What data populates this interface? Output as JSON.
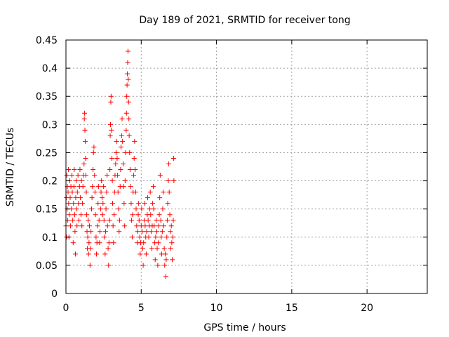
{
  "chart_data": {
    "type": "scatter",
    "title": "Day 189 of 2021, SRMTID for receiver tong",
    "xlabel": "GPS time / hours",
    "ylabel": "SRMTID / TECUs",
    "xlim": [
      0,
      24
    ],
    "ylim": [
      0,
      0.45
    ],
    "xticks": [
      0,
      5,
      10,
      15,
      20
    ],
    "xtick_labels": [
      "0",
      "5",
      "10",
      "15",
      "20"
    ],
    "yticks": [
      0,
      0.05,
      0.1,
      0.15,
      0.2,
      0.25,
      0.3,
      0.35,
      0.4,
      0.45
    ],
    "ytick_labels": [
      "0",
      "0.05",
      "0.1",
      "0.15",
      "0.2",
      "0.25",
      "0.3",
      "0.35",
      "0.4",
      "0.45"
    ],
    "grid": true,
    "marker": "+",
    "color": "#ff0000",
    "series": [
      {
        "name": "SRMTID",
        "points": [
          [
            0.0,
            0.12
          ],
          [
            0.02,
            0.17
          ],
          [
            0.04,
            0.1
          ],
          [
            0.06,
            0.21
          ],
          [
            0.08,
            0.15
          ],
          [
            0.1,
            0.19
          ],
          [
            0.12,
            0.13
          ],
          [
            0.14,
            0.18
          ],
          [
            0.16,
            0.22
          ],
          [
            0.18,
            0.16
          ],
          [
            0.2,
            0.1
          ],
          [
            0.22,
            0.14
          ],
          [
            0.25,
            0.2
          ],
          [
            0.28,
            0.17
          ],
          [
            0.3,
            0.12
          ],
          [
            0.33,
            0.19
          ],
          [
            0.36,
            0.15
          ],
          [
            0.4,
            0.21
          ],
          [
            0.42,
            0.18
          ],
          [
            0.45,
            0.13
          ],
          [
            0.48,
            0.09
          ],
          [
            0.5,
            0.16
          ],
          [
            0.53,
            0.19
          ],
          [
            0.55,
            0.22
          ],
          [
            0.58,
            0.14
          ],
          [
            0.6,
            0.11
          ],
          [
            0.63,
            0.07
          ],
          [
            0.65,
            0.17
          ],
          [
            0.68,
            0.2
          ],
          [
            0.7,
            0.15
          ],
          [
            0.73,
            0.12
          ],
          [
            0.76,
            0.18
          ],
          [
            0.8,
            0.21
          ],
          [
            0.83,
            0.16
          ],
          [
            0.86,
            0.13
          ],
          [
            0.9,
            0.19
          ],
          [
            0.93,
            0.22
          ],
          [
            0.96,
            0.17
          ],
          [
            1.0,
            0.14
          ],
          [
            1.03,
            0.2
          ],
          [
            1.06,
            0.12
          ],
          [
            1.1,
            0.16
          ],
          [
            1.13,
            0.19
          ],
          [
            1.16,
            0.21
          ],
          [
            1.2,
            0.23
          ],
          [
            1.22,
            0.31
          ],
          [
            1.24,
            0.32
          ],
          [
            1.26,
            0.29
          ],
          [
            1.28,
            0.27
          ],
          [
            1.3,
            0.24
          ],
          [
            1.32,
            0.21
          ],
          [
            1.35,
            0.18
          ],
          [
            1.38,
            0.14
          ],
          [
            1.4,
            0.11
          ],
          [
            1.42,
            0.08
          ],
          [
            1.45,
            0.1
          ],
          [
            1.48,
            0.13
          ],
          [
            1.5,
            0.07
          ],
          [
            1.53,
            0.09
          ],
          [
            1.56,
            0.12
          ],
          [
            1.6,
            0.05
          ],
          [
            1.63,
            0.08
          ],
          [
            1.66,
            0.11
          ],
          [
            1.7,
            0.15
          ],
          [
            1.73,
            0.17
          ],
          [
            1.76,
            0.19
          ],
          [
            1.8,
            0.22
          ],
          [
            1.83,
            0.25
          ],
          [
            1.86,
            0.26
          ],
          [
            1.9,
            0.21
          ],
          [
            1.93,
            0.18
          ],
          [
            1.96,
            0.14
          ],
          [
            2.0,
            0.1
          ],
          [
            2.03,
            0.07
          ],
          [
            2.06,
            0.09
          ],
          [
            2.1,
            0.12
          ],
          [
            2.13,
            0.16
          ],
          [
            2.16,
            0.19
          ],
          [
            2.2,
            0.13
          ],
          [
            2.23,
            0.09
          ],
          [
            2.26,
            0.11
          ],
          [
            2.3,
            0.15
          ],
          [
            2.33,
            0.18
          ],
          [
            2.36,
            0.2
          ],
          [
            2.4,
            0.17
          ],
          [
            2.43,
            0.14
          ],
          [
            2.46,
            0.16
          ],
          [
            2.5,
            0.19
          ],
          [
            2.53,
            0.13
          ],
          [
            2.56,
            0.1
          ],
          [
            2.6,
            0.07
          ],
          [
            2.63,
            0.11
          ],
          [
            2.66,
            0.15
          ],
          [
            2.7,
            0.18
          ],
          [
            2.73,
            0.21
          ],
          [
            2.76,
            0.12
          ],
          [
            2.8,
            0.08
          ],
          [
            2.83,
            0.05
          ],
          [
            2.86,
            0.09
          ],
          [
            2.9,
            0.13
          ],
          [
            2.92,
            0.22
          ],
          [
            2.94,
            0.28
          ],
          [
            2.96,
            0.3
          ],
          [
            2.98,
            0.34
          ],
          [
            3.0,
            0.35
          ],
          [
            3.02,
            0.29
          ],
          [
            3.05,
            0.24
          ],
          [
            3.08,
            0.2
          ],
          [
            3.1,
            0.16
          ],
          [
            3.13,
            0.12
          ],
          [
            3.16,
            0.09
          ],
          [
            3.2,
            0.14
          ],
          [
            3.23,
            0.18
          ],
          [
            3.26,
            0.21
          ],
          [
            3.3,
            0.23
          ],
          [
            3.33,
            0.25
          ],
          [
            3.36,
            0.27
          ],
          [
            3.4,
            0.24
          ],
          [
            3.43,
            0.21
          ],
          [
            3.46,
            0.18
          ],
          [
            3.5,
            0.15
          ],
          [
            3.53,
            0.11
          ],
          [
            3.56,
            0.13
          ],
          [
            3.6,
            0.19
          ],
          [
            3.63,
            0.22
          ],
          [
            3.66,
            0.26
          ],
          [
            3.7,
            0.28
          ],
          [
            3.73,
            0.31
          ],
          [
            3.76,
            0.27
          ],
          [
            3.8,
            0.23
          ],
          [
            3.83,
            0.19
          ],
          [
            3.86,
            0.16
          ],
          [
            3.9,
            0.12
          ],
          [
            3.93,
            0.2
          ],
          [
            3.96,
            0.25
          ],
          [
            4.0,
            0.29
          ],
          [
            4.02,
            0.32
          ],
          [
            4.04,
            0.35
          ],
          [
            4.06,
            0.37
          ],
          [
            4.08,
            0.39
          ],
          [
            4.1,
            0.41
          ],
          [
            4.12,
            0.43
          ],
          [
            4.14,
            0.38
          ],
          [
            4.16,
            0.34
          ],
          [
            4.18,
            0.31
          ],
          [
            4.2,
            0.28
          ],
          [
            4.23,
            0.25
          ],
          [
            4.26,
            0.22
          ],
          [
            4.3,
            0.19
          ],
          [
            4.33,
            0.16
          ],
          [
            4.36,
            0.13
          ],
          [
            4.4,
            0.1
          ],
          [
            4.43,
            0.14
          ],
          [
            4.46,
            0.18
          ],
          [
            4.5,
            0.21
          ],
          [
            4.53,
            0.24
          ],
          [
            4.56,
            0.27
          ],
          [
            4.6,
            0.22
          ],
          [
            4.63,
            0.18
          ],
          [
            4.66,
            0.15
          ],
          [
            4.7,
            0.12
          ],
          [
            4.73,
            0.09
          ],
          [
            4.76,
            0.11
          ],
          [
            4.8,
            0.14
          ],
          [
            4.83,
            0.16
          ],
          [
            4.86,
            0.13
          ],
          [
            4.9,
            0.1
          ],
          [
            4.93,
            0.07
          ],
          [
            4.96,
            0.09
          ],
          [
            5.0,
            0.12
          ],
          [
            5.03,
            0.15
          ],
          [
            5.06,
            0.11
          ],
          [
            5.1,
            0.08
          ],
          [
            5.13,
            0.05
          ],
          [
            5.16,
            0.09
          ],
          [
            5.2,
            0.13
          ],
          [
            5.23,
            0.16
          ],
          [
            5.26,
            0.12
          ],
          [
            5.3,
            0.1
          ],
          [
            5.33,
            0.07
          ],
          [
            5.36,
            0.11
          ],
          [
            5.4,
            0.14
          ],
          [
            5.43,
            0.17
          ],
          [
            5.46,
            0.13
          ],
          [
            5.5,
            0.1
          ],
          [
            5.53,
            0.12
          ],
          [
            5.56,
            0.15
          ],
          [
            5.6,
            0.18
          ],
          [
            5.63,
            0.14
          ],
          [
            5.66,
            0.11
          ],
          [
            5.7,
            0.08
          ],
          [
            5.73,
            0.12
          ],
          [
            5.76,
            0.16
          ],
          [
            5.8,
            0.19
          ],
          [
            5.83,
            0.15
          ],
          [
            5.86,
            0.12
          ],
          [
            5.9,
            0.09
          ],
          [
            5.93,
            0.06
          ],
          [
            5.96,
            0.1
          ],
          [
            6.0,
            0.13
          ],
          [
            6.03,
            0.11
          ],
          [
            6.06,
            0.08
          ],
          [
            6.1,
            0.05
          ],
          [
            6.13,
            0.09
          ],
          [
            6.16,
            0.12
          ],
          [
            6.2,
            0.14
          ],
          [
            6.23,
            0.17
          ],
          [
            6.26,
            0.21
          ],
          [
            6.3,
            0.13
          ],
          [
            6.33,
            0.1
          ],
          [
            6.36,
            0.07
          ],
          [
            6.4,
            0.11
          ],
          [
            6.43,
            0.15
          ],
          [
            6.46,
            0.18
          ],
          [
            6.5,
            0.12
          ],
          [
            6.53,
            0.08
          ],
          [
            6.56,
            0.05
          ],
          [
            6.6,
            0.07
          ],
          [
            6.63,
            0.03
          ],
          [
            6.66,
            0.06
          ],
          [
            6.7,
            0.1
          ],
          [
            6.73,
            0.13
          ],
          [
            6.76,
            0.16
          ],
          [
            6.8,
            0.2
          ],
          [
            6.83,
            0.23
          ],
          [
            6.86,
            0.18
          ],
          [
            6.9,
            0.14
          ],
          [
            6.93,
            0.11
          ],
          [
            6.96,
            0.08
          ],
          [
            7.0,
            0.12
          ],
          [
            7.03,
            0.09
          ],
          [
            7.06,
            0.06
          ],
          [
            7.1,
            0.1
          ],
          [
            7.13,
            0.13
          ],
          [
            7.15,
            0.24
          ],
          [
            7.17,
            0.2
          ]
        ]
      }
    ]
  }
}
